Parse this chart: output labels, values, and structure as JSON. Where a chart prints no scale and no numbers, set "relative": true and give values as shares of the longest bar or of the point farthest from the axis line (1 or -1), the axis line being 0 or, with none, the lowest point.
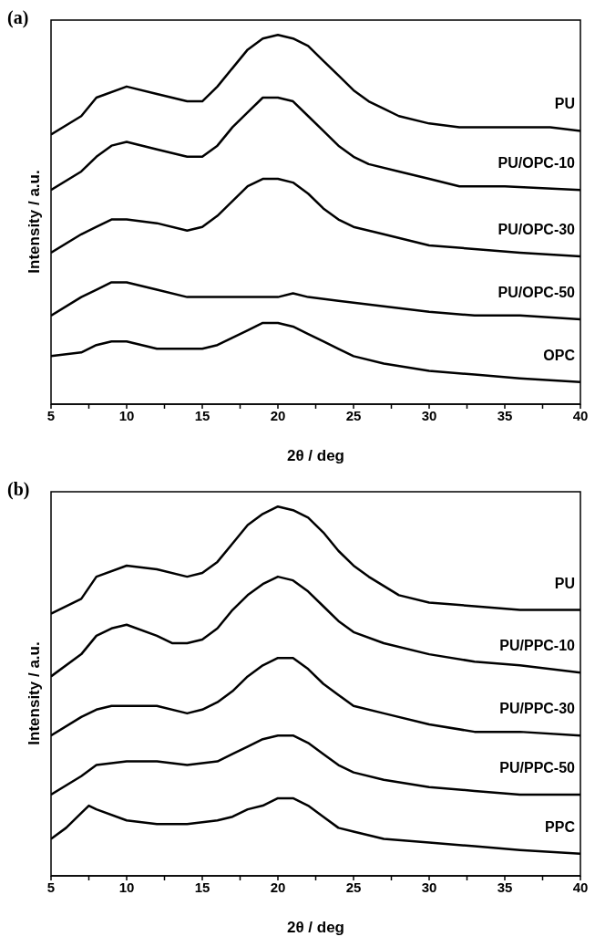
{
  "chart_data": [
    {
      "type": "line",
      "title": "(a)",
      "xlabel": "2θ / deg",
      "ylabel": "Intensity / a.u.",
      "relative": true,
      "marker": "none",
      "tick_labels": "x",
      "xlim": [
        5,
        40
      ],
      "xticks": [
        5,
        {
          "value": 7.5,
          "label": null
        },
        10,
        {
          "value": 12.5,
          "label": null
        },
        15,
        {
          "value": 17.5,
          "label": null
        },
        20,
        {
          "value": 22.5,
          "label": null
        },
        25,
        {
          "value": 27.5,
          "label": null
        },
        30,
        {
          "value": 32.5,
          "label": null
        },
        35,
        {
          "value": 37.5,
          "label": null
        },
        40
      ],
      "series": [
        {
          "name": "PU",
          "color": "#000000",
          "x": [
            5,
            7,
            8,
            10,
            12,
            14,
            15,
            16,
            17,
            18,
            19,
            20,
            21,
            22,
            23,
            24,
            25,
            26,
            27,
            28,
            30,
            32,
            35,
            38,
            40
          ],
          "values": [
            0.73,
            0.78,
            0.83,
            0.86,
            0.84,
            0.82,
            0.82,
            0.86,
            0.91,
            0.96,
            0.99,
            1.0,
            0.99,
            0.97,
            0.93,
            0.89,
            0.85,
            0.82,
            0.8,
            0.78,
            0.76,
            0.75,
            0.75,
            0.75,
            0.74
          ]
        },
        {
          "name": "PU/OPC-10",
          "color": "#000000",
          "x": [
            5,
            7,
            8,
            9,
            10,
            12,
            14,
            15,
            16,
            17,
            18,
            19,
            20,
            21,
            22,
            23,
            24,
            25,
            26,
            28,
            30,
            32,
            35,
            40
          ],
          "values": [
            0.58,
            0.63,
            0.67,
            0.7,
            0.71,
            0.69,
            0.67,
            0.67,
            0.7,
            0.75,
            0.79,
            0.83,
            0.83,
            0.82,
            0.78,
            0.74,
            0.7,
            0.67,
            0.65,
            0.63,
            0.61,
            0.59,
            0.59,
            0.58
          ]
        },
        {
          "name": "PU/OPC-30",
          "color": "#000000",
          "x": [
            5,
            7,
            8,
            9,
            10,
            12,
            14,
            15,
            16,
            17,
            18,
            19,
            20,
            21,
            22,
            23,
            24,
            25,
            27,
            30,
            33,
            36,
            40
          ],
          "values": [
            0.41,
            0.46,
            0.48,
            0.5,
            0.5,
            0.49,
            0.47,
            0.48,
            0.51,
            0.55,
            0.59,
            0.61,
            0.61,
            0.6,
            0.57,
            0.53,
            0.5,
            0.48,
            0.46,
            0.43,
            0.42,
            0.41,
            0.4
          ]
        },
        {
          "name": "PU/OPC-50",
          "color": "#000000",
          "x": [
            5,
            7,
            8,
            9,
            10,
            12,
            14,
            16,
            18,
            20,
            21,
            22,
            24,
            26,
            28,
            30,
            33,
            36,
            40
          ],
          "values": [
            0.24,
            0.29,
            0.31,
            0.33,
            0.33,
            0.31,
            0.29,
            0.29,
            0.29,
            0.29,
            0.3,
            0.29,
            0.28,
            0.27,
            0.26,
            0.25,
            0.24,
            0.24,
            0.23
          ]
        },
        {
          "name": "OPC",
          "color": "#000000",
          "x": [
            5,
            7,
            8,
            9,
            10,
            12,
            14,
            15,
            16,
            17,
            18,
            19,
            20,
            21,
            22,
            23,
            24,
            25,
            27,
            30,
            33,
            36,
            40
          ],
          "values": [
            0.13,
            0.14,
            0.16,
            0.17,
            0.17,
            0.15,
            0.15,
            0.15,
            0.16,
            0.18,
            0.2,
            0.22,
            0.22,
            0.21,
            0.19,
            0.17,
            0.15,
            0.13,
            0.11,
            0.09,
            0.08,
            0.07,
            0.06
          ]
        }
      ]
    },
    {
      "type": "line",
      "title": "(b)",
      "xlabel": "2θ / deg",
      "ylabel": "Intensity / a.u.",
      "relative": true,
      "marker": "none",
      "tick_labels": "x",
      "xlim": [
        5,
        40
      ],
      "xticks": [
        5,
        {
          "value": 7.5,
          "label": null
        },
        10,
        {
          "value": 12.5,
          "label": null
        },
        15,
        {
          "value": 17.5,
          "label": null
        },
        20,
        {
          "value": 22.5,
          "label": null
        },
        25,
        {
          "value": 27.5,
          "label": null
        },
        30,
        {
          "value": 32.5,
          "label": null
        },
        35,
        {
          "value": 37.5,
          "label": null
        },
        40
      ],
      "series": [
        {
          "name": "PU",
          "color": "#000000",
          "x": [
            5,
            7,
            8,
            10,
            12,
            14,
            15,
            16,
            17,
            18,
            19,
            20,
            21,
            22,
            23,
            24,
            25,
            26,
            28,
            30,
            33,
            36,
            40
          ],
          "values": [
            0.71,
            0.75,
            0.81,
            0.84,
            0.83,
            0.81,
            0.82,
            0.85,
            0.9,
            0.95,
            0.98,
            1.0,
            0.99,
            0.97,
            0.93,
            0.88,
            0.84,
            0.81,
            0.76,
            0.74,
            0.73,
            0.72,
            0.72
          ]
        },
        {
          "name": "PU/PPC-10",
          "color": "#000000",
          "x": [
            5,
            7,
            8,
            9,
            10,
            12,
            13,
            14,
            15,
            16,
            17,
            18,
            19,
            20,
            21,
            22,
            23,
            24,
            25,
            27,
            30,
            33,
            36,
            40
          ],
          "values": [
            0.54,
            0.6,
            0.65,
            0.67,
            0.68,
            0.65,
            0.63,
            0.63,
            0.64,
            0.67,
            0.72,
            0.76,
            0.79,
            0.81,
            0.8,
            0.77,
            0.73,
            0.69,
            0.66,
            0.63,
            0.6,
            0.58,
            0.57,
            0.55
          ]
        },
        {
          "name": "PU/PPC-30",
          "color": "#000000",
          "x": [
            5,
            7,
            8,
            9,
            10,
            12,
            14,
            15,
            16,
            17,
            18,
            19,
            20,
            21,
            22,
            23,
            24,
            25,
            27,
            30,
            33,
            36,
            40
          ],
          "values": [
            0.38,
            0.43,
            0.45,
            0.46,
            0.46,
            0.46,
            0.44,
            0.45,
            0.47,
            0.5,
            0.54,
            0.57,
            0.59,
            0.59,
            0.56,
            0.52,
            0.49,
            0.46,
            0.44,
            0.41,
            0.39,
            0.39,
            0.38
          ]
        },
        {
          "name": "PU/PPC-50",
          "color": "#000000",
          "x": [
            5,
            7,
            8,
            10,
            12,
            14,
            16,
            17,
            18,
            19,
            20,
            21,
            22,
            23,
            24,
            25,
            27,
            30,
            33,
            36,
            40
          ],
          "values": [
            0.22,
            0.27,
            0.3,
            0.31,
            0.31,
            0.3,
            0.31,
            0.33,
            0.35,
            0.37,
            0.38,
            0.38,
            0.36,
            0.33,
            0.3,
            0.28,
            0.26,
            0.24,
            0.23,
            0.22,
            0.22
          ]
        },
        {
          "name": "PPC",
          "color": "#000000",
          "x": [
            5,
            6,
            7,
            7.5,
            8,
            10,
            12,
            14,
            16,
            17,
            18,
            19,
            20,
            21,
            22,
            23,
            24,
            25,
            27,
            30,
            33,
            36,
            40
          ],
          "values": [
            0.1,
            0.13,
            0.17,
            0.19,
            0.18,
            0.15,
            0.14,
            0.14,
            0.15,
            0.16,
            0.18,
            0.19,
            0.21,
            0.21,
            0.19,
            0.16,
            0.13,
            0.12,
            0.1,
            0.09,
            0.08,
            0.07,
            0.06
          ]
        }
      ]
    }
  ]
}
